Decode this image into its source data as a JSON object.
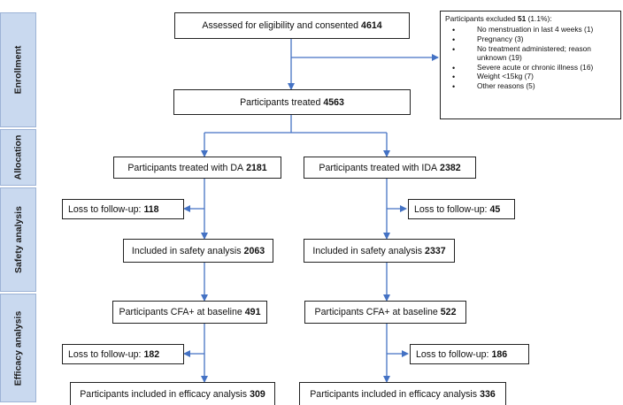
{
  "phases": {
    "enrollment": "Enrollment",
    "allocation": "Allocation",
    "safety": "Safety analysis",
    "efficacy": "Efficacy analysis"
  },
  "boxes": {
    "assessed": {
      "label": "Assessed for eligibility and consented",
      "value": "4614"
    },
    "treated": {
      "label": "Participants treated",
      "value": "4563"
    },
    "da": {
      "label": "Participants treated with DA",
      "value": "2181"
    },
    "ida": {
      "label": "Participants treated with IDA",
      "value": "2382"
    },
    "da_loss1": {
      "label": "Loss to follow-up:",
      "value": "118"
    },
    "ida_loss1": {
      "label": "Loss to follow-up:",
      "value": "45"
    },
    "da_safety": {
      "label": "Included in safety analysis",
      "value": "2063"
    },
    "ida_safety": {
      "label": "Included in safety analysis",
      "value": "2337"
    },
    "da_cfa": {
      "label": "Participants CFA+ at baseline",
      "value": "491"
    },
    "ida_cfa": {
      "label": "Participants CFA+ at baseline",
      "value": "522"
    },
    "da_loss2": {
      "label": "Loss to follow-up:",
      "value": "182"
    },
    "ida_loss2": {
      "label": "Loss to follow-up:",
      "value": "186"
    },
    "da_efficacy": {
      "label": "Participants included in efficacy analysis",
      "value": "309"
    },
    "ida_efficacy": {
      "label": "Participants included in efficacy analysis",
      "value": "336"
    }
  },
  "excluded": {
    "label": "Participants excluded",
    "value": "51",
    "pct": "(1.1%):",
    "items": [
      "No menstruation in last 4 weeks (1)",
      "Pregnancy (3)",
      "No treatment administered; reason unknown (19)",
      "Severe acute or chronic illness (16)",
      "Weight <15kg (7)",
      "Other reasons (5)"
    ]
  },
  "colors": {
    "arrow": "#4472c4",
    "phase_fill": "#c9d9ef",
    "phase_border": "#9db3d6"
  }
}
